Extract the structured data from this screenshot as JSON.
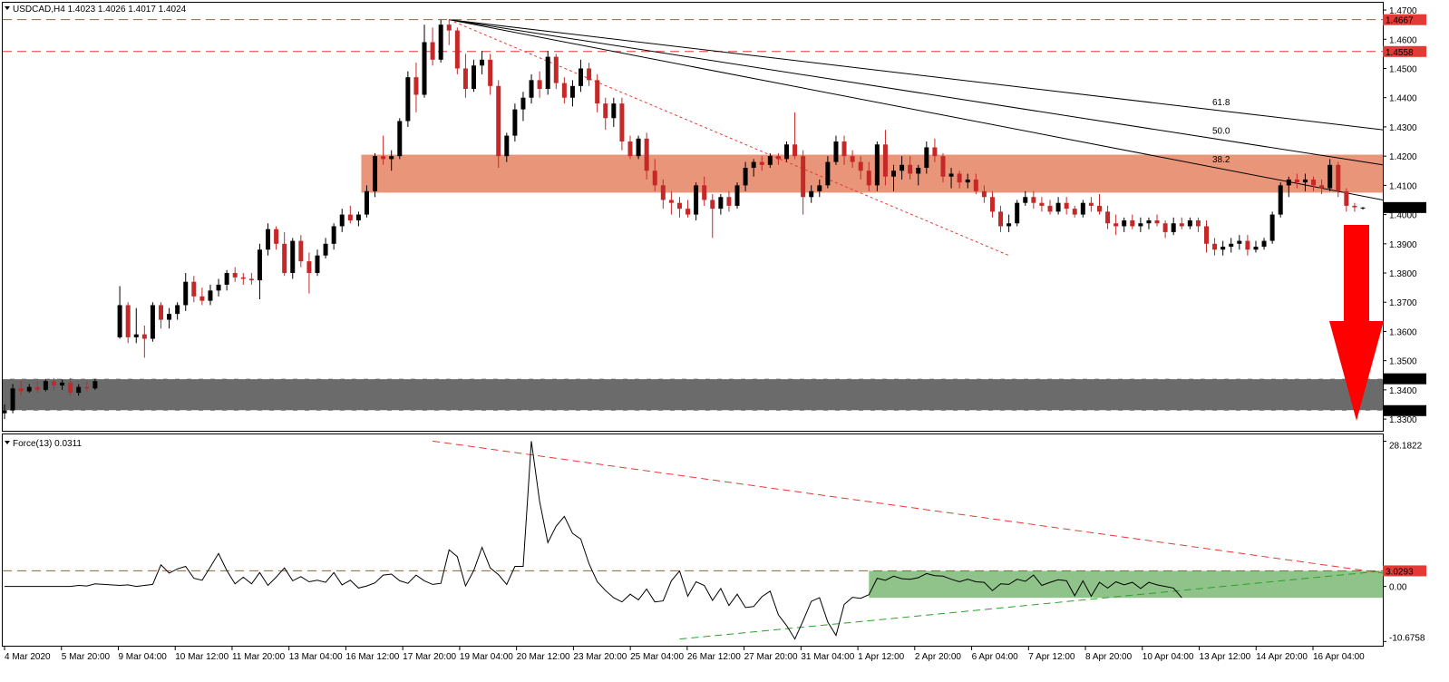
{
  "header": {
    "symbol_title": "USDCAD,H4  1.4023 1.4026 1.4017 1.4024",
    "indicator_title": "Force(13) 0.0311"
  },
  "colors": {
    "bull_candle": "#000000",
    "bear_candle": "#c62828",
    "resistance_zone": "#e8957a",
    "support_zone": "#6b6b6b",
    "force_zone": "#8fc38a",
    "hline": "#e53935",
    "arrow": "#ff0000",
    "price_tag": "#000000",
    "level_tag": "#e53935"
  },
  "chart_data": [
    {
      "type": "candlestick",
      "symbol": "USDCAD",
      "timeframe": "H4",
      "last": {
        "open": 1.4023,
        "high": 1.4026,
        "low": 1.4017,
        "close": 1.4024
      },
      "ylim": [
        1.326,
        1.4725
      ],
      "y_ticks": [
        "1.4700",
        "1.4600",
        "1.4500",
        "1.4400",
        "1.4300",
        "1.4200",
        "1.4100",
        "1.4000",
        "1.3900",
        "1.3800",
        "1.3700",
        "1.3600",
        "1.3500",
        "1.3400",
        "1.3300"
      ],
      "x_ticks": [
        "4 Mar 2020",
        "5 Mar 20:00",
        "9 Mar 04:00",
        "10 Mar 12:00",
        "11 Mar 20:00",
        "13 Mar 04:00",
        "16 Mar 12:00",
        "17 Mar 20:00",
        "19 Mar 04:00",
        "20 Mar 12:00",
        "23 Mar 20:00",
        "25 Mar 04:00",
        "26 Mar 12:00",
        "27 Mar 20:00",
        "31 Mar 04:00",
        "1 Apr 12:00",
        "2 Apr 20:00",
        "6 Apr 04:00",
        "7 Apr 12:00",
        "8 Apr 20:00",
        "10 Apr 04:00",
        "13 Apr 12:00",
        "14 Apr 20:00",
        "16 Apr 04:00"
      ],
      "horizontal_levels": [
        {
          "value": 1.4667,
          "label": "1.4667"
        },
        {
          "value": 1.4558,
          "label": "1.4558"
        }
      ],
      "price_tag": "1.4024",
      "zones": [
        {
          "name": "resistance",
          "from": 1.4075,
          "to": 1.4205
        },
        {
          "name": "support",
          "from": 1.3329,
          "to": 1.3438,
          "labels": [
            "1.3438",
            "1.3329"
          ]
        }
      ],
      "fib_fan_labels": [
        "38.2",
        "50.0",
        "61.8"
      ],
      "candles": [
        [
          1.332,
          1.335,
          1.33,
          1.333
        ],
        [
          1.333,
          1.342,
          1.332,
          1.3405
        ],
        [
          1.3405,
          1.343,
          1.338,
          1.3395
        ],
        [
          1.3395,
          1.342,
          1.339,
          1.341
        ],
        [
          1.341,
          1.343,
          1.339,
          1.34
        ],
        [
          1.34,
          1.3435,
          1.3395,
          1.343
        ],
        [
          1.343,
          1.344,
          1.34,
          1.3415
        ],
        [
          1.3415,
          1.3435,
          1.34,
          1.3425
        ],
        [
          1.3425,
          1.344,
          1.338,
          1.339
        ],
        [
          1.339,
          1.342,
          1.338,
          1.341
        ],
        [
          1.341,
          1.343,
          1.3395,
          1.3405
        ],
        [
          1.3405,
          1.3438,
          1.34,
          1.343
        ],
        [
          1.358,
          1.3755,
          1.3575,
          1.369
        ],
        [
          1.369,
          1.37,
          1.356,
          1.358
        ],
        [
          1.358,
          1.368,
          1.356,
          1.359
        ],
        [
          1.359,
          1.362,
          1.351,
          1.3575
        ],
        [
          1.3575,
          1.37,
          1.3565,
          1.369
        ],
        [
          1.369,
          1.37,
          1.361,
          1.364
        ],
        [
          1.364,
          1.368,
          1.361,
          1.366
        ],
        [
          1.366,
          1.37,
          1.364,
          1.369
        ],
        [
          1.369,
          1.38,
          1.367,
          1.377
        ],
        [
          1.377,
          1.379,
          1.37,
          1.372
        ],
        [
          1.372,
          1.375,
          1.369,
          1.3705
        ],
        [
          1.3705,
          1.376,
          1.369,
          1.374
        ],
        [
          1.374,
          1.378,
          1.372,
          1.376
        ],
        [
          1.376,
          1.381,
          1.374,
          1.38
        ],
        [
          1.38,
          1.382,
          1.377,
          1.3785
        ],
        [
          1.3785,
          1.38,
          1.376,
          1.378
        ],
        [
          1.378,
          1.38,
          1.376,
          1.3775
        ],
        [
          1.3775,
          1.39,
          1.371,
          1.388
        ],
        [
          1.388,
          1.397,
          1.386,
          1.395
        ],
        [
          1.395,
          1.396,
          1.388,
          1.39
        ],
        [
          1.39,
          1.394,
          1.379,
          1.38
        ],
        [
          1.38,
          1.392,
          1.378,
          1.391
        ],
        [
          1.391,
          1.393,
          1.382,
          1.384
        ],
        [
          1.384,
          1.387,
          1.373,
          1.38
        ],
        [
          1.38,
          1.388,
          1.379,
          1.386
        ],
        [
          1.386,
          1.392,
          1.385,
          1.39
        ],
        [
          1.39,
          1.397,
          1.388,
          1.396
        ],
        [
          1.396,
          1.402,
          1.394,
          1.4
        ],
        [
          1.4,
          1.403,
          1.397,
          1.398
        ],
        [
          1.398,
          1.401,
          1.396,
          1.4
        ],
        [
          1.4,
          1.41,
          1.399,
          1.408
        ],
        [
          1.408,
          1.421,
          1.406,
          1.42
        ],
        [
          1.42,
          1.427,
          1.417,
          1.419
        ],
        [
          1.419,
          1.422,
          1.415,
          1.42
        ],
        [
          1.42,
          1.433,
          1.419,
          1.432
        ],
        [
          1.432,
          1.449,
          1.43,
          1.447
        ],
        [
          1.447,
          1.452,
          1.435,
          1.441
        ],
        [
          1.441,
          1.465,
          1.44,
          1.459
        ],
        [
          1.459,
          1.464,
          1.451,
          1.453
        ],
        [
          1.453,
          1.4667,
          1.452,
          1.465
        ],
        [
          1.465,
          1.4667,
          1.458,
          1.463
        ],
        [
          1.463,
          1.464,
          1.448,
          1.45
        ],
        [
          1.45,
          1.455,
          1.44,
          1.443
        ],
        [
          1.443,
          1.453,
          1.442,
          1.451
        ],
        [
          1.451,
          1.456,
          1.448,
          1.453
        ],
        [
          1.453,
          1.455,
          1.441,
          1.444
        ],
        [
          1.444,
          1.446,
          1.416,
          1.42
        ],
        [
          1.42,
          1.428,
          1.418,
          1.427
        ],
        [
          1.427,
          1.438,
          1.425,
          1.436
        ],
        [
          1.436,
          1.442,
          1.432,
          1.44
        ],
        [
          1.44,
          1.448,
          1.438,
          1.446
        ],
        [
          1.446,
          1.449,
          1.44,
          1.443
        ],
        [
          1.443,
          1.456,
          1.441,
          1.454
        ],
        [
          1.454,
          1.455,
          1.443,
          1.445
        ],
        [
          1.445,
          1.447,
          1.438,
          1.44
        ],
        [
          1.44,
          1.446,
          1.437,
          1.444
        ],
        [
          1.444,
          1.453,
          1.442,
          1.45
        ],
        [
          1.45,
          1.452,
          1.444,
          1.446
        ],
        [
          1.446,
          1.448,
          1.435,
          1.438
        ],
        [
          1.438,
          1.44,
          1.429,
          1.433
        ],
        [
          1.433,
          1.44,
          1.43,
          1.438
        ],
        [
          1.438,
          1.44,
          1.422,
          1.425
        ],
        [
          1.425,
          1.427,
          1.419,
          1.42
        ],
        [
          1.42,
          1.427,
          1.419,
          1.426
        ],
        [
          1.426,
          1.428,
          1.412,
          1.415
        ],
        [
          1.415,
          1.419,
          1.408,
          1.41
        ],
        [
          1.41,
          1.412,
          1.402,
          1.405
        ],
        [
          1.405,
          1.408,
          1.4,
          1.404
        ],
        [
          1.404,
          1.406,
          1.399,
          1.402
        ],
        [
          1.402,
          1.405,
          1.399,
          1.4
        ],
        [
          1.4,
          1.411,
          1.398,
          1.41
        ],
        [
          1.41,
          1.413,
          1.403,
          1.405
        ],
        [
          1.405,
          1.407,
          1.392,
          1.402
        ],
        [
          1.402,
          1.407,
          1.4,
          1.406
        ],
        [
          1.406,
          1.408,
          1.401,
          1.403
        ],
        [
          1.403,
          1.411,
          1.402,
          1.41
        ],
        [
          1.41,
          1.418,
          1.408,
          1.416
        ],
        [
          1.416,
          1.419,
          1.413,
          1.418
        ],
        [
          1.418,
          1.42,
          1.415,
          1.417
        ],
        [
          1.417,
          1.421,
          1.416,
          1.42
        ],
        [
          1.42,
          1.421,
          1.417,
          1.419
        ],
        [
          1.419,
          1.425,
          1.418,
          1.424
        ],
        [
          1.424,
          1.435,
          1.419,
          1.42
        ],
        [
          1.42,
          1.422,
          1.4,
          1.406
        ],
        [
          1.406,
          1.41,
          1.404,
          1.408
        ],
        [
          1.408,
          1.412,
          1.406,
          1.41
        ],
        [
          1.41,
          1.42,
          1.409,
          1.418
        ],
        [
          1.418,
          1.427,
          1.417,
          1.425
        ],
        [
          1.425,
          1.427,
          1.417,
          1.42
        ],
        [
          1.42,
          1.422,
          1.416,
          1.418
        ],
        [
          1.418,
          1.42,
          1.412,
          1.415
        ],
        [
          1.415,
          1.418,
          1.408,
          1.41
        ],
        [
          1.41,
          1.425,
          1.408,
          1.424
        ],
        [
          1.424,
          1.429,
          1.41,
          1.413
        ],
        [
          1.413,
          1.417,
          1.408,
          1.415
        ],
        [
          1.415,
          1.42,
          1.412,
          1.417
        ],
        [
          1.417,
          1.42,
          1.412,
          1.414
        ],
        [
          1.414,
          1.417,
          1.41,
          1.416
        ],
        [
          1.416,
          1.425,
          1.414,
          1.423
        ],
        [
          1.423,
          1.426,
          1.418,
          1.42
        ],
        [
          1.42,
          1.421,
          1.411,
          1.413
        ],
        [
          1.413,
          1.416,
          1.409,
          1.414
        ],
        [
          1.414,
          1.415,
          1.409,
          1.411
        ],
        [
          1.411,
          1.414,
          1.409,
          1.412
        ],
        [
          1.412,
          1.414,
          1.407,
          1.408
        ],
        [
          1.408,
          1.41,
          1.404,
          1.406
        ],
        [
          1.406,
          1.408,
          1.399,
          1.401
        ],
        [
          1.401,
          1.403,
          1.394,
          1.396
        ],
        [
          1.396,
          1.4,
          1.394,
          1.397
        ],
        [
          1.397,
          1.405,
          1.396,
          1.404
        ],
        [
          1.404,
          1.408,
          1.403,
          1.406
        ],
        [
          1.406,
          1.408,
          1.402,
          1.404
        ],
        [
          1.404,
          1.406,
          1.401,
          1.403
        ],
        [
          1.403,
          1.405,
          1.4,
          1.401
        ],
        [
          1.401,
          1.406,
          1.4,
          1.404
        ],
        [
          1.404,
          1.406,
          1.4,
          1.402
        ],
        [
          1.402,
          1.403,
          1.399,
          1.4
        ],
        [
          1.4,
          1.405,
          1.399,
          1.404
        ],
        [
          1.404,
          1.406,
          1.401,
          1.403
        ],
        [
          1.403,
          1.407,
          1.4,
          1.401
        ],
        [
          1.401,
          1.403,
          1.395,
          1.397
        ],
        [
          1.397,
          1.4,
          1.393,
          1.396
        ],
        [
          1.396,
          1.399,
          1.394,
          1.398
        ],
        [
          1.398,
          1.4,
          1.395,
          1.396
        ],
        [
          1.396,
          1.399,
          1.394,
          1.397
        ],
        [
          1.397,
          1.399,
          1.395,
          1.398
        ],
        [
          1.398,
          1.4,
          1.396,
          1.397
        ],
        [
          1.397,
          1.398,
          1.392,
          1.394
        ],
        [
          1.394,
          1.399,
          1.393,
          1.397
        ],
        [
          1.397,
          1.399,
          1.395,
          1.396
        ],
        [
          1.396,
          1.399,
          1.395,
          1.398
        ],
        [
          1.398,
          1.399,
          1.394,
          1.396
        ],
        [
          1.396,
          1.398,
          1.387,
          1.39
        ],
        [
          1.39,
          1.392,
          1.386,
          1.388
        ],
        [
          1.388,
          1.391,
          1.386,
          1.389
        ],
        [
          1.389,
          1.392,
          1.387,
          1.39
        ],
        [
          1.39,
          1.393,
          1.388,
          1.391
        ],
        [
          1.391,
          1.393,
          1.386,
          1.388
        ],
        [
          1.388,
          1.391,
          1.387,
          1.389
        ],
        [
          1.389,
          1.392,
          1.388,
          1.391
        ],
        [
          1.391,
          1.401,
          1.39,
          1.4
        ],
        [
          1.4,
          1.411,
          1.399,
          1.41
        ],
        [
          1.41,
          1.413,
          1.406,
          1.412
        ],
        [
          1.412,
          1.414,
          1.409,
          1.411
        ],
        [
          1.411,
          1.414,
          1.408,
          1.412
        ],
        [
          1.412,
          1.413,
          1.408,
          1.41
        ],
        [
          1.41,
          1.412,
          1.407,
          1.409
        ],
        [
          1.409,
          1.419,
          1.408,
          1.417
        ],
        [
          1.417,
          1.418,
          1.406,
          1.408
        ],
        [
          1.408,
          1.409,
          1.401,
          1.403
        ],
        [
          1.403,
          1.404,
          1.401,
          1.4025
        ],
        [
          1.4023,
          1.4026,
          1.4017,
          1.4024
        ]
      ]
    },
    {
      "type": "line",
      "name": "Force(13)",
      "value_label": "0.0311",
      "ylim": [
        -11.5,
        29.5
      ],
      "y_ticks": [
        "28.1822",
        "3.0293",
        "0.00",
        "-10.6758"
      ],
      "level": {
        "value": 3.0293,
        "label": "3.0293"
      },
      "zone": {
        "from": -2.2,
        "to": 3.0293
      },
      "values": [
        0,
        0,
        0,
        0,
        0,
        0,
        0,
        0,
        0,
        0.2,
        0.1,
        0.5,
        0.2,
        0.3,
        0,
        0.2,
        0.4,
        4.2,
        2.6,
        3.4,
        3.9,
        1.6,
        1.2,
        3.8,
        6.4,
        3.1,
        0.5,
        1.8,
        0.5,
        2.7,
        0.2,
        1.8,
        3.6,
        1.1,
        1.9,
        0.9,
        1.2,
        0.8,
        2.7,
        0.3,
        1.2,
        -0.3,
        0.1,
        0.7,
        2.2,
        2.4,
        1.1,
        0.6,
        2.2,
        1.1,
        0.4,
        0.6,
        7.1,
        5.8,
        0.1,
        3.1,
        7.6,
        3.6,
        2.3,
        0.4,
        3.9,
        3.9,
        28.2,
        16.5,
        8.5,
        11.7,
        13.6,
        10.3,
        9.2,
        4.4,
        0.9,
        -0.8,
        -2.2,
        -3.0,
        -1.5,
        -2.6,
        -0.5,
        -3.0,
        -2.8,
        1.1,
        3.0,
        -1.9,
        0.9,
        0.2,
        -2.7,
        -0.4,
        -3.7,
        -1.5,
        -4.1,
        -3.9,
        -2.0,
        -0.9,
        -5.5,
        -7.6,
        -10.2,
        -6.7,
        -2.9,
        -2.2,
        -6.9,
        -9.5,
        -3.5,
        -2.1,
        -2.3,
        -1.6,
        1.6,
        1.2,
        2.0,
        1.5,
        1.4,
        1.7,
        2.5,
        2.1,
        2.0,
        1.4,
        0.9,
        1.4,
        0.9,
        0.8,
        -0.8,
        0.5,
        0.4,
        1.4,
        1.0,
        2.2,
        0.2,
        0.8,
        1.3,
        1.1,
        -1.8,
        1.1,
        -1.9,
        0.8,
        -0.3,
        0.9,
        0.3,
        0.8,
        -0.4,
        0.8,
        0.3,
        0.0,
        -0.3,
        -2.2
      ]
    }
  ]
}
